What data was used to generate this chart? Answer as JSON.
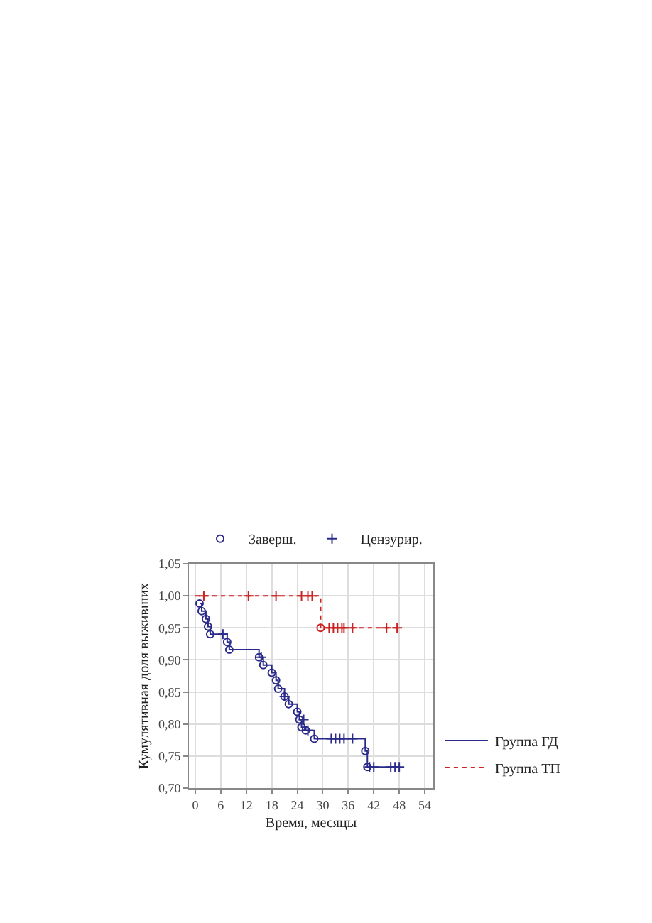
{
  "chart_data": {
    "type": "step",
    "xlabel": "Время, месяцы",
    "ylabel": "Кумулятивная доля выживших",
    "xlim": [
      -1.5,
      56
    ],
    "xticks": [
      0,
      6,
      12,
      18,
      24,
      30,
      36,
      42,
      48,
      54
    ],
    "ylim": [
      0.7,
      1.05
    ],
    "yticks": [
      {
        "value": 0.7,
        "label": "0,70"
      },
      {
        "value": 0.75,
        "label": "0,75"
      },
      {
        "value": 0.8,
        "label": "0,80"
      },
      {
        "value": 0.85,
        "label": "0,85"
      },
      {
        "value": 0.9,
        "label": "0,90"
      },
      {
        "value": 0.95,
        "label": "0,95"
      },
      {
        "value": 1.0,
        "label": "1,00"
      },
      {
        "value": 1.05,
        "label": "1,05"
      }
    ],
    "grid": true,
    "legend": "top",
    "series": [
      {
        "name": "Группа ГД",
        "color": "#2a2a8a",
        "line_style": "solid",
        "x": [
          1,
          1.5,
          2.5,
          3,
          3.5,
          7.5,
          8,
          15,
          16,
          18,
          19,
          19.5,
          21,
          22,
          24,
          24.5,
          25,
          26,
          28,
          40,
          40.5,
          48
        ],
        "values": [
          0.988,
          0.976,
          0.964,
          0.952,
          0.94,
          0.928,
          0.916,
          0.904,
          0.892,
          0.88,
          0.868,
          0.855,
          0.843,
          0.831,
          0.819,
          0.807,
          0.795,
          0.79,
          0.777,
          0.758,
          0.733,
          0.733
        ]
      },
      {
        "name": "Группа ТП",
        "color": "#cc2222",
        "line_style": "dotted",
        "x": [
          0,
          29.5,
          48
        ],
        "values": [
          1.0,
          0.95,
          0.95
        ]
      },
      {
        "name": "Заверш.",
        "type": "scatter",
        "marker": "circle",
        "colors": [
          "#2a2a8a",
          "#2a2a8a",
          "#2a2a8a",
          "#2a2a8a",
          "#2a2a8a",
          "#2a2a8a",
          "#2a2a8a",
          "#2a2a8a",
          "#2a2a8a",
          "#2a2a8a",
          "#2a2a8a",
          "#2a2a8a",
          "#2a2a8a",
          "#2a2a8a",
          "#2a2a8a",
          "#2a2a8a",
          "#2a2a8a",
          "#2a2a8a",
          "#2a2a8a",
          "#2a2a8a",
          "#2a2a8a",
          "#cc2222"
        ],
        "x": [
          1,
          1.5,
          2.5,
          3,
          3.5,
          7.5,
          8,
          15,
          16,
          18,
          19,
          19.5,
          21,
          22,
          24,
          24.5,
          25,
          26,
          28,
          40,
          40.5,
          29.5
        ],
        "values": [
          0.988,
          0.976,
          0.964,
          0.952,
          0.94,
          0.928,
          0.916,
          0.904,
          0.892,
          0.88,
          0.868,
          0.855,
          0.843,
          0.831,
          0.819,
          0.807,
          0.795,
          0.79,
          0.777,
          0.758,
          0.733,
          0.95
        ]
      },
      {
        "name": "Цензурир.",
        "type": "scatter",
        "marker": "cross",
        "colors": [
          "#2a2a8a",
          "#2a2a8a",
          "#2a2a8a",
          "#2a2a8a",
          "#2a2a8a",
          "#2a2a8a",
          "#2a2a8a",
          "#2a2a8a",
          "#2a2a8a",
          "#2a2a8a",
          "#2a2a8a",
          "#2a2a8a",
          "#2a2a8a",
          "#2a2a8a",
          "#2a2a8a",
          "#cc2222",
          "#cc2222",
          "#cc2222",
          "#cc2222",
          "#cc2222",
          "#cc2222",
          "#cc2222",
          "#cc2222",
          "#cc2222",
          "#cc2222",
          "#cc2222",
          "#cc2222",
          "#cc2222",
          "#cc2222"
        ],
        "x": [
          6.5,
          15.5,
          21,
          25.5,
          26.5,
          32,
          33,
          34,
          35,
          37,
          41,
          42,
          46,
          47,
          48,
          2,
          12.5,
          19,
          25,
          26.5,
          27.5,
          31.5,
          32.5,
          33.5,
          34.5,
          35,
          37,
          45,
          47.5
        ],
        "values": [
          0.94,
          0.904,
          0.843,
          0.807,
          0.79,
          0.777,
          0.777,
          0.777,
          0.777,
          0.777,
          0.733,
          0.733,
          0.733,
          0.733,
          0.733,
          1.0,
          1.0,
          1.0,
          1.0,
          1.0,
          1.0,
          0.95,
          0.95,
          0.95,
          0.95,
          0.95,
          0.95,
          0.95,
          0.95
        ]
      }
    ]
  }
}
